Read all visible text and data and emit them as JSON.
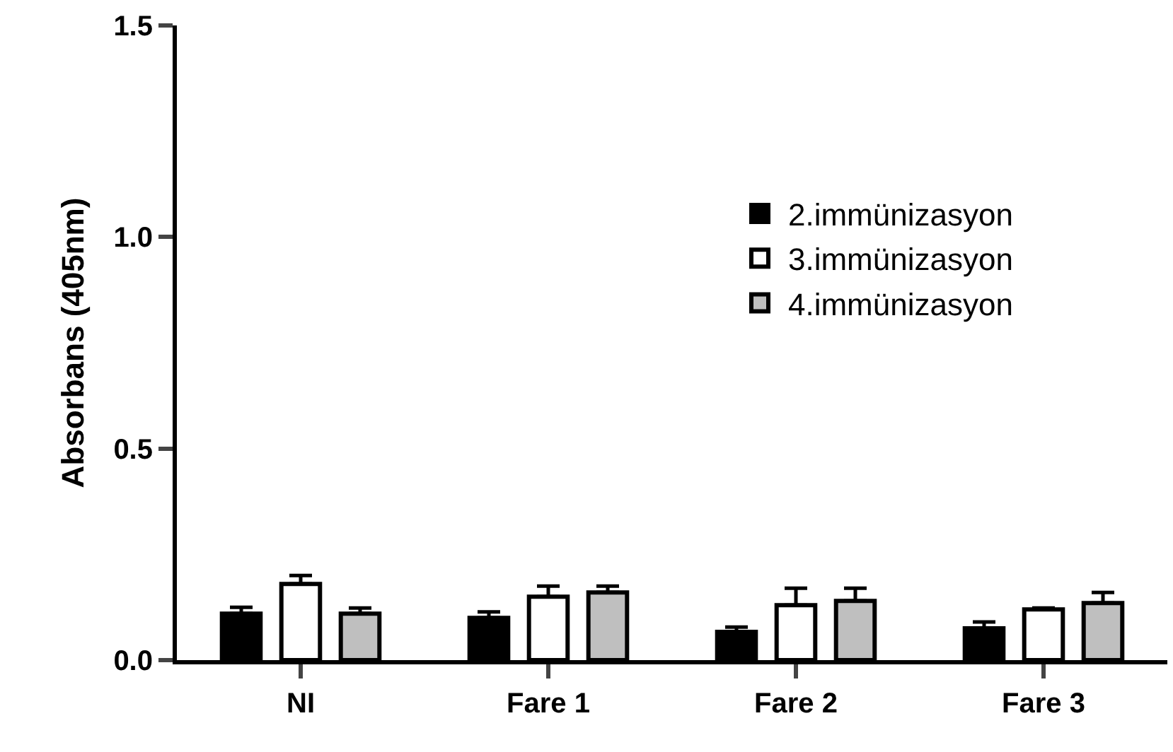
{
  "chart_data": {
    "type": "bar",
    "ylabel": "Absorbans (405nm)",
    "categories": [
      "NI",
      "Fare 1",
      "Fare 2",
      "Fare 3"
    ],
    "series": [
      {
        "name": "2.immünizasyon",
        "color": "#000000",
        "values": [
          0.11,
          0.1,
          0.067,
          0.075
        ],
        "errors": [
          [
            0.11,
            0.125
          ],
          [
            0.1,
            0.114
          ],
          [
            0.067,
            0.078
          ],
          [
            0.075,
            0.09
          ]
        ]
      },
      {
        "name": "3.immünizasyon",
        "color": "#ffffff",
        "values": [
          0.18,
          0.15,
          0.13,
          0.12
        ],
        "errors": [
          [
            0.18,
            0.2
          ],
          [
            0.15,
            0.175
          ],
          [
            0.13,
            0.17
          ],
          [
            0.12,
            0.123
          ]
        ]
      },
      {
        "name": "4.immünizasyon",
        "color": "#bfbfbf",
        "values": [
          0.11,
          0.16,
          0.14,
          0.135
        ],
        "errors": [
          [
            0.11,
            0.123
          ],
          [
            0.16,
            0.175
          ],
          [
            0.14,
            0.17
          ],
          [
            0.135,
            0.16
          ]
        ]
      }
    ],
    "ylim": [
      0,
      1.5
    ],
    "yticks": [
      {
        "value": 0,
        "label": "0.0"
      },
      0.5,
      {
        "value": 1,
        "label": "1.0"
      },
      1.5
    ],
    "legend": "top right"
  }
}
